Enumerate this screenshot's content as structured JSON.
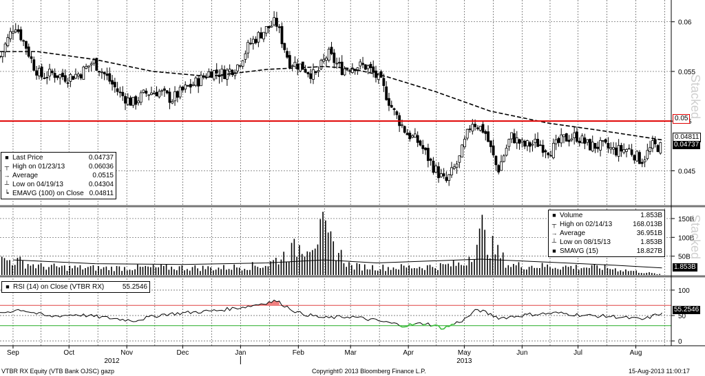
{
  "footer": {
    "left": "VTBR RX Equity (VTB Bank OJSC) gazp",
    "center": "Copyright© 2013 Bloomberg Finance L.P.",
    "right": "15-Aug-2013 11:00:17"
  },
  "stacked_label": "Stacked",
  "colors": {
    "resistance": "#e00000",
    "rsi_upper": "#e04040",
    "rsi_lower": "#22aa22",
    "rsi_fill_high": "#f08080",
    "rsi_fill_low": "#40c040"
  },
  "chart_data": [
    {
      "type": "candlestick",
      "title": "",
      "yticks": [
        "0.06",
        "0.055",
        "0.05",
        "0.045"
      ],
      "ylim": [
        0.0415,
        0.0615
      ],
      "resistance_level": 0.05,
      "resistance_label": "0.05",
      "last_price_label": "0.04737",
      "ema_label": "0.04811",
      "legend": [
        {
          "icon": "square",
          "label": "Last Price",
          "value": "0.04737"
        },
        {
          "icon": "high",
          "label": "High on 01/23/13",
          "value": "0.06036"
        },
        {
          "icon": "avg",
          "label": "Average",
          "value": "0.0515"
        },
        {
          "icon": "low",
          "label": "Low on 04/19/13",
          "value": "0.04304"
        },
        {
          "icon": "ema",
          "label": "EMAVG (100) on Close",
          "value": "0.04811"
        }
      ],
      "close_points": [
        [
          "2012-08-25",
          0.0565
        ],
        [
          "2012-09-02",
          0.0598
        ],
        [
          "2012-09-08",
          0.0575
        ],
        [
          "2012-09-12",
          0.0556
        ],
        [
          "2012-09-16",
          0.0545
        ],
        [
          "2012-09-22",
          0.0548
        ],
        [
          "2012-09-30",
          0.0544
        ],
        [
          "2012-10-07",
          0.0548
        ],
        [
          "2012-10-14",
          0.056
        ],
        [
          "2012-10-21",
          0.0545
        ],
        [
          "2012-10-28",
          0.0528
        ],
        [
          "2012-11-04",
          0.0518
        ],
        [
          "2012-11-11",
          0.0528
        ],
        [
          "2012-11-18",
          0.053
        ],
        [
          "2012-11-25",
          0.0522
        ],
        [
          "2012-12-02",
          0.0532
        ],
        [
          "2012-12-09",
          0.054
        ],
        [
          "2012-12-16",
          0.055
        ],
        [
          "2012-12-23",
          0.0548
        ],
        [
          "2012-12-30",
          0.0555
        ],
        [
          "2013-01-06",
          0.0578
        ],
        [
          "2013-01-13",
          0.059
        ],
        [
          "2013-01-20",
          0.06
        ],
        [
          "2013-01-27",
          0.056
        ],
        [
          "2013-02-03",
          0.0555
        ],
        [
          "2013-02-10",
          0.0545
        ],
        [
          "2013-02-17",
          0.0568
        ],
        [
          "2013-02-24",
          0.0552
        ],
        [
          "2013-03-03",
          0.0556
        ],
        [
          "2013-03-10",
          0.0555
        ],
        [
          "2013-03-17",
          0.054
        ],
        [
          "2013-03-24",
          0.051
        ],
        [
          "2013-03-31",
          0.0488
        ],
        [
          "2013-04-07",
          0.0478
        ],
        [
          "2013-04-14",
          0.0455
        ],
        [
          "2013-04-21",
          0.0438
        ],
        [
          "2013-04-28",
          0.046
        ],
        [
          "2013-05-05",
          0.05
        ],
        [
          "2013-05-12",
          0.049
        ],
        [
          "2013-05-19",
          0.045
        ],
        [
          "2013-05-26",
          0.0485
        ],
        [
          "2013-06-02",
          0.0475
        ],
        [
          "2013-06-09",
          0.0478
        ],
        [
          "2013-06-16",
          0.047
        ],
        [
          "2013-06-23",
          0.0482
        ],
        [
          "2013-06-30",
          0.0485
        ],
        [
          "2013-07-07",
          0.0475
        ],
        [
          "2013-07-14",
          0.0475
        ],
        [
          "2013-07-21",
          0.047
        ],
        [
          "2013-07-28",
          0.0472
        ],
        [
          "2013-08-04",
          0.046
        ],
        [
          "2013-08-10",
          0.0475
        ],
        [
          "2013-08-15",
          0.04737
        ]
      ],
      "ema_points": [
        [
          "2012-08-25",
          0.057
        ],
        [
          "2012-09-14",
          0.057
        ],
        [
          "2012-10-15",
          0.0562
        ],
        [
          "2012-11-15",
          0.055
        ],
        [
          "2012-12-15",
          0.0545
        ],
        [
          "2013-01-15",
          0.0552
        ],
        [
          "2013-02-15",
          0.0555
        ],
        [
          "2013-03-01",
          0.0553
        ],
        [
          "2013-03-20",
          0.0545
        ],
        [
          "2013-04-15",
          0.053
        ],
        [
          "2013-05-15",
          0.051
        ],
        [
          "2013-06-15",
          0.0498
        ],
        [
          "2013-07-15",
          0.049
        ],
        [
          "2013-08-15",
          0.04811
        ]
      ]
    },
    {
      "type": "bar",
      "yticks": [
        "150B",
        "100B",
        "50B"
      ],
      "ylim": [
        0,
        170
      ],
      "value_label": "1.853B",
      "legend": [
        {
          "icon": "square",
          "label": "Volume",
          "value": "1.853B"
        },
        {
          "icon": "high",
          "label": "High on 02/14/13",
          "value": "168.013B"
        },
        {
          "icon": "avg",
          "label": "Average",
          "value": "36.951B"
        },
        {
          "icon": "low",
          "label": "Low on 08/15/13",
          "value": "1.853B"
        },
        {
          "icon": "square",
          "label": "SMAVG (15)",
          "value": "18.827B"
        }
      ],
      "volume_points": [
        [
          "2012-09-01",
          60
        ],
        [
          "2012-09-15",
          35
        ],
        [
          "2012-10-01",
          30
        ],
        [
          "2012-10-20",
          28
        ],
        [
          "2012-11-10",
          30
        ],
        [
          "2012-12-01",
          30
        ],
        [
          "2012-12-20",
          28
        ],
        [
          "2013-01-15",
          40
        ],
        [
          "2013-02-14",
          168
        ],
        [
          "2013-03-01",
          35
        ],
        [
          "2013-03-20",
          30
        ],
        [
          "2013-04-15",
          35
        ],
        [
          "2013-05-01",
          45
        ],
        [
          "2013-05-10",
          160
        ],
        [
          "2013-05-25",
          40
        ],
        [
          "2013-06-15",
          35
        ],
        [
          "2013-07-15",
          30
        ],
        [
          "2013-08-15",
          1.853
        ]
      ],
      "smavg_points": [
        [
          "2012-09-01",
          40
        ],
        [
          "2012-10-15",
          30
        ],
        [
          "2012-12-01",
          28
        ],
        [
          "2013-01-15",
          32
        ],
        [
          "2013-02-15",
          40
        ],
        [
          "2013-03-15",
          32
        ],
        [
          "2013-05-10",
          42
        ],
        [
          "2013-06-15",
          34
        ],
        [
          "2013-07-20",
          26
        ],
        [
          "2013-08-15",
          18.827
        ]
      ]
    },
    {
      "type": "line",
      "yticks": [
        "100",
        "50",
        "0"
      ],
      "ylim": [
        0,
        100
      ],
      "upper_band": 70,
      "lower_band": 30,
      "value_label": "55.2546",
      "legend": [
        {
          "icon": "square",
          "label": "RSI (14) on Close (VTBR RX)",
          "value": "55.2546"
        }
      ],
      "rsi_points": [
        [
          "2012-08-25",
          55
        ],
        [
          "2012-09-05",
          62
        ],
        [
          "2012-09-20",
          48
        ],
        [
          "2012-10-05",
          52
        ],
        [
          "2012-10-20",
          46
        ],
        [
          "2012-11-05",
          40
        ],
        [
          "2012-11-20",
          52
        ],
        [
          "2012-12-05",
          56
        ],
        [
          "2012-12-20",
          60
        ],
        [
          "2013-01-05",
          68
        ],
        [
          "2013-01-20",
          79
        ],
        [
          "2013-02-01",
          55
        ],
        [
          "2013-02-15",
          45
        ],
        [
          "2013-03-01",
          48
        ],
        [
          "2013-03-15",
          40
        ],
        [
          "2013-03-30",
          30
        ],
        [
          "2013-04-10",
          35
        ],
        [
          "2013-04-20",
          25
        ],
        [
          "2013-05-01",
          42
        ],
        [
          "2013-05-08",
          62
        ],
        [
          "2013-05-20",
          45
        ],
        [
          "2013-06-05",
          52
        ],
        [
          "2013-06-20",
          55
        ],
        [
          "2013-07-05",
          50
        ],
        [
          "2013-07-20",
          48
        ],
        [
          "2013-08-05",
          42
        ],
        [
          "2013-08-15",
          55.2546
        ]
      ]
    }
  ],
  "x_axis": {
    "months": [
      {
        "label": "Sep",
        "date": "2012-09-01"
      },
      {
        "label": "Oct",
        "date": "2012-10-01"
      },
      {
        "label": "Nov",
        "date": "2012-11-01"
      },
      {
        "label": "Dec",
        "date": "2012-12-01"
      },
      {
        "label": "Jan",
        "date": "2013-01-01"
      },
      {
        "label": "Feb",
        "date": "2013-02-01"
      },
      {
        "label": "Mar",
        "date": "2013-03-01"
      },
      {
        "label": "Apr",
        "date": "2013-04-01"
      },
      {
        "label": "May",
        "date": "2013-05-01"
      },
      {
        "label": "Jun",
        "date": "2013-06-01"
      },
      {
        "label": "Jul",
        "date": "2013-07-01"
      },
      {
        "label": "Aug",
        "date": "2013-08-01"
      }
    ],
    "years": [
      {
        "label": "2012",
        "date": "2012-10-24"
      },
      {
        "label": "2013",
        "date": "2013-05-01"
      }
    ],
    "xlim": [
      "2012-08-25",
      "2013-08-20"
    ]
  }
}
